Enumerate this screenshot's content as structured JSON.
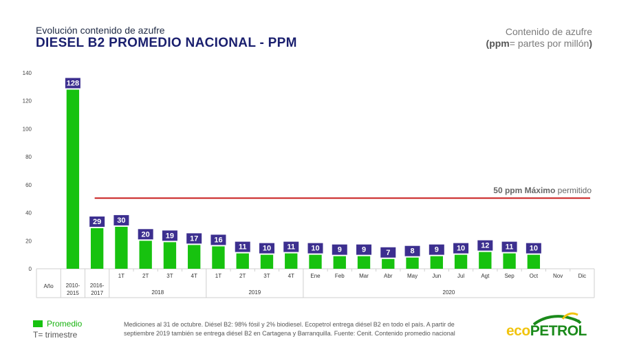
{
  "header": {
    "subtitle": "Evolución contenido de azufre",
    "title": "DIESEL B2 PROMEDIO NACIONAL - PPM"
  },
  "unit_legend": {
    "line1": "Contenido de azufre",
    "line2_bold": "ppm",
    "line2_rest": "= partes por millón",
    "line2_close": ")",
    "line2_open": "("
  },
  "legend": {
    "series_label": "Promedio",
    "trimester_note": "T= trimestre"
  },
  "footnote": {
    "line1": "Mediciones al 31 de octubre. Diésel B2: 98% fósil y 2% biodiesel. Ecopetrol entrega diésel B2 en todo el país. A partir de",
    "line2": "septiembre 2019 también se entrega diésel B2 en Cartagena y Barranquilla. Fuente: Cenit. Contenido promedio nacional"
  },
  "logo": {
    "part1": "eco",
    "part2": "PETROL"
  },
  "colors": {
    "bar": "#17c20f",
    "label_box": "#3c2f8f",
    "limit_line": "#c81e1e"
  },
  "chart_data": {
    "type": "bar",
    "categories": [
      "Año",
      "2010-2015",
      "2016-2017",
      "1T",
      "2T",
      "3T",
      "4T",
      "1T",
      "2T",
      "3T",
      "4T",
      "Ene",
      "Feb",
      "Mar",
      "Abr",
      "May",
      "Jun",
      "Jul",
      "Agt",
      "Sep",
      "Oct",
      "Nov",
      "Dic"
    ],
    "values": [
      null,
      128,
      29,
      30,
      20,
      19,
      17,
      16,
      11,
      10,
      11,
      10,
      9,
      9,
      7,
      8,
      9,
      10,
      12,
      11,
      10,
      null,
      null
    ],
    "groups": [
      {
        "label": "2018",
        "start": 3,
        "end": 6
      },
      {
        "label": "2019",
        "start": 7,
        "end": 10
      },
      {
        "label": "2020",
        "start": 11,
        "end": 22
      }
    ],
    "y_ticks": [
      0,
      20,
      40,
      60,
      80,
      100,
      120,
      140
    ],
    "ylim": [
      0,
      140
    ],
    "reference_line": {
      "value": 50,
      "label_bold": "50 ppm Máximo",
      "label_rest": "permitido",
      "start_index": 2
    }
  }
}
